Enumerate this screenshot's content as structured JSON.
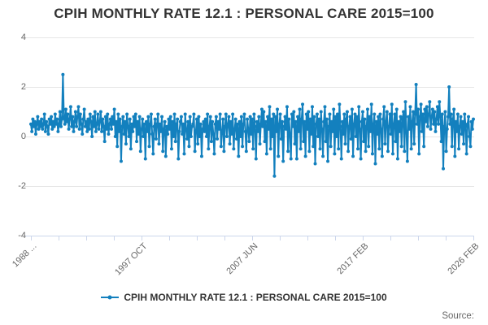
{
  "chart_data": {
    "type": "line",
    "title": "CPIH MONTHLY RATE 12.1 : PERSONAL CARE 2015=100",
    "y_axis": {
      "min": -4,
      "max": 4,
      "ticks": [
        4,
        2,
        0,
        -2,
        -4
      ]
    },
    "x_axis": {
      "tick_count": 17,
      "label_every": 4,
      "label_rotation_deg": -45,
      "labeled_ticks": [
        "1988 ...",
        "1997 OCT",
        "2007 JUN",
        "2017 FEB",
        "2026 FEB"
      ]
    },
    "grid": true,
    "legend_position": "bottom",
    "series": [
      {
        "name": "CPIH MONTHLY RATE 12.1 : PERSONAL CARE 2015=100",
        "color": "#1380be",
        "frequency_note": "monthly points, 1988 to 2026 FEB",
        "values": [
          0.5,
          0.2,
          0.7,
          0.4,
          0.6,
          0.1,
          0.5,
          0.8,
          0.3,
          0.6,
          0.4,
          0.7,
          0.3,
          0.5,
          0.9,
          0.2,
          0.6,
          0.4,
          0.1,
          0.7,
          0.5,
          0.8,
          0.3,
          0.6,
          0.4,
          0.9,
          0.5,
          0.7,
          0.2,
          0.5,
          1.0,
          0.4,
          0.7,
          2.5,
          0.8,
          0.5,
          1.1,
          0.6,
          0.9,
          0.3,
          0.7,
          1.2,
          0.4,
          0.8,
          0.2,
          0.6,
          1.0,
          0.4,
          0.8,
          1.2,
          0.3,
          0.9,
          0.5,
          0.1,
          0.7,
          1.1,
          0.4,
          0.6,
          0.2,
          0.7,
          0.3,
          0.9,
          0.6,
          0.0,
          0.8,
          0.4,
          1.0,
          0.2,
          0.5,
          0.9,
          0.3,
          0.6,
          1.0,
          0.2,
          0.7,
          0.4,
          -0.2,
          0.8,
          0.3,
          0.9,
          0.1,
          0.5,
          0.7,
          0.3,
          0.8,
          0.5,
          1.1,
          0.0,
          0.6,
          -0.4,
          0.9,
          0.2,
          0.7,
          -1.0,
          0.4,
          0.8,
          0.1,
          0.6,
          -0.3,
          0.9,
          0.4,
          0.0,
          0.7,
          -0.5,
          0.5,
          0.2,
          0.8,
          0.4,
          0.9,
          -0.2,
          0.6,
          0.1,
          0.8,
          -0.6,
          0.3,
          0.7,
          0.0,
          0.5,
          -0.9,
          0.6,
          0.2,
          0.8,
          -0.4,
          0.5,
          0.9,
          0.1,
          -0.7,
          0.4,
          0.7,
          -0.1,
          0.5,
          0.9,
          -0.3,
          0.5,
          0.2,
          0.8,
          -0.6,
          0.3,
          0.6,
          -0.8,
          0.4,
          0.1,
          0.7,
          0.3,
          0.8,
          -0.5,
          0.6,
          0.0,
          0.9,
          -0.2,
          0.5,
          0.7,
          -0.9,
          0.2,
          0.6,
          0.8,
          0.1,
          0.5,
          -0.7,
          0.9,
          0.3,
          -0.1,
          0.6,
          -0.4,
          0.8,
          0.0,
          0.4,
          0.5,
          0.9,
          -0.6,
          0.2,
          0.7,
          -0.3,
          0.8,
          0.0,
          0.5,
          -0.8,
          0.3,
          0.6,
          0.2,
          0.7,
          0.0,
          0.9,
          -0.5,
          0.4,
          0.8,
          -0.2,
          0.6,
          0.1,
          -0.7,
          0.5,
          0.8,
          -0.1,
          0.6,
          0.3,
          0.9,
          -0.4,
          0.2,
          0.7,
          -0.6,
          0.4,
          0.9,
          0.0,
          0.5,
          0.8,
          -0.3,
          0.6,
          0.1,
          0.9,
          -0.5,
          0.3,
          0.7,
          -0.1,
          0.5,
          -0.8,
          0.6,
          0.0,
          0.8,
          -0.4,
          0.5,
          0.9,
          0.2,
          -0.6,
          0.7,
          0.3,
          -0.2,
          0.8,
          0.1,
          0.7,
          -0.5,
          0.9,
          0.4,
          -0.9,
          0.6,
          0.2,
          0.8,
          -0.3,
          0.5,
          1.1,
          0.4,
          1.0,
          -0.2,
          0.6,
          -0.7,
          0.8,
          0.3,
          1.2,
          -0.5,
          0.7,
          0.0,
          0.9,
          -1.6,
          0.8,
          0.2,
          1.1,
          -0.8,
          0.5,
          0.9,
          -0.1,
          0.6,
          -1.0,
          0.4,
          0.8,
          0.3,
          1.2,
          -0.6,
          0.7,
          0.1,
          -0.9,
          0.9,
          0.4,
          1.0,
          -0.3,
          0.6,
          -0.9,
          0.8,
          0.2,
          1.1,
          -0.5,
          0.7,
          1.3,
          -0.2,
          0.6,
          -0.8,
          0.9,
          0.3,
          1.0,
          -0.6,
          0.7,
          0.1,
          1.2,
          -0.4,
          0.8,
          -1.1,
          0.5,
          0.9,
          0.0,
          0.7,
          -0.5,
          1.0,
          0.3,
          -0.8,
          0.6,
          1.2,
          -0.2,
          0.7,
          -1.0,
          0.4,
          0.9,
          -0.4,
          0.6,
          0.2,
          1.1,
          -0.7,
          0.8,
          0.0,
          0.9,
          -0.5,
          1.3,
          0.4,
          -0.9,
          0.6,
          0.1,
          0.9,
          -0.3,
          0.7,
          1.0,
          -0.6,
          0.4,
          0.8,
          -0.1,
          1.1,
          -0.8,
          0.5,
          0.9,
          0.0,
          0.8,
          -0.5,
          1.2,
          0.3,
          -0.9,
          0.6,
          1.0,
          -0.2,
          0.7,
          -0.6,
          0.4,
          1.1,
          -0.4,
          0.8,
          0.2,
          1.3,
          -0.7,
          0.5,
          0.9,
          -1.1,
          0.6,
          0.1,
          0.8,
          -0.5,
          0.9,
          0.3,
          -0.8,
          0.7,
          1.2,
          -0.3,
          0.6,
          1.0,
          -0.6,
          0.4,
          0.9,
          0.1,
          1.3,
          -0.7,
          0.5,
          0.9,
          -0.2,
          1.1,
          -0.9,
          0.6,
          0.2,
          0.8,
          -0.4,
          0.7,
          1.0,
          -0.6,
          1.4,
          0.2,
          -1.0,
          0.8,
          0.3,
          1.2,
          -0.5,
          0.6,
          1.0,
          -0.3,
          0.9,
          2.1,
          0.5,
          1.1,
          -0.7,
          0.8,
          1.3,
          0.2,
          0.9,
          -0.4,
          1.1,
          0.6,
          1.2,
          0.4,
          0.9,
          1.4,
          0.3,
          0.8,
          1.1,
          0.5,
          1.0,
          0.2,
          0.7,
          1.2,
          0.5,
          1.4,
          0.8,
          -0.2,
          0.9,
          -1.3,
          0.4,
          1.0,
          -0.6,
          0.3,
          0.8,
          2.0,
          0.5,
          0.9,
          -0.4,
          0.7,
          1.1,
          -0.8,
          0.6,
          0.2,
          0.9,
          -0.5,
          0.4,
          0.8,
          0.1,
          0.6,
          -0.3,
          0.9,
          0.4,
          -0.7,
          0.5,
          0.8,
          0.0,
          -0.4,
          0.6,
          0.3,
          0.7
        ]
      }
    ]
  },
  "legend": {
    "label": "CPIH MONTHLY RATE 12.1 : PERSONAL CARE 2015=100"
  },
  "source": {
    "label": "Source:"
  },
  "colors": {
    "series_blue": "#1380be",
    "gridline": "#e6e6e6",
    "axis_line": "#ccd6eb",
    "title_text": "#333333",
    "axis_text": "#666666"
  }
}
